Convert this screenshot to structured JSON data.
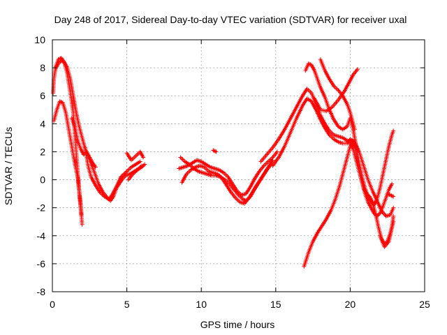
{
  "chart_data": {
    "type": "scatter",
    "title": "Day 248 of 2017, Sidereal Day-to-day VTEC variation (SDTVAR) for receiver uxal",
    "xlabel": "GPS time / hours",
    "ylabel": "SDTVAR / TECUs",
    "xlim": [
      0,
      25
    ],
    "ylim": [
      -8,
      10
    ],
    "xticks": [
      0,
      5,
      10,
      15,
      20,
      25
    ],
    "yticks": [
      -8,
      -6,
      -4,
      -2,
      0,
      2,
      4,
      6,
      8,
      10
    ],
    "grid": true,
    "marker": "+",
    "color": "#ff0000",
    "tracks": [
      [
        [
          0.05,
          6.2
        ],
        [
          0.1,
          7.2
        ],
        [
          0.2,
          7.9
        ],
        [
          0.4,
          8.3
        ],
        [
          0.6,
          8.5
        ],
        [
          0.8,
          8.4
        ],
        [
          1.0,
          8.0
        ],
        [
          1.2,
          7.2
        ],
        [
          1.4,
          6.0
        ],
        [
          1.6,
          4.8
        ],
        [
          1.8,
          3.8
        ],
        [
          2.0,
          3.0
        ],
        [
          2.2,
          2.2
        ],
        [
          2.5,
          1.4
        ],
        [
          2.8,
          0.6
        ],
        [
          3.1,
          -0.3
        ],
        [
          3.4,
          -0.9
        ],
        [
          3.7,
          -1.3
        ],
        [
          3.9,
          -1.5
        ],
        [
          4.1,
          -1.2
        ],
        [
          4.3,
          -0.6
        ],
        [
          4.6,
          -0.1
        ],
        [
          4.9,
          0.3
        ],
        [
          5.2,
          0.4
        ],
        [
          5.5,
          0.6
        ],
        [
          5.8,
          0.8
        ],
        [
          6.0,
          1.0
        ]
      ],
      [
        [
          0.1,
          4.2
        ],
        [
          0.3,
          5.0
        ],
        [
          0.5,
          5.6
        ],
        [
          0.7,
          5.5
        ],
        [
          0.9,
          4.8
        ],
        [
          1.1,
          3.6
        ],
        [
          1.3,
          2.4
        ],
        [
          1.5,
          1.2
        ],
        [
          1.7,
          0.2
        ],
        [
          1.8,
          -0.8
        ],
        [
          1.9,
          -1.8
        ],
        [
          1.95,
          -2.5
        ]
      ],
      [
        [
          0.2,
          8.0
        ],
        [
          0.4,
          8.6
        ],
        [
          0.6,
          8.7
        ],
        [
          0.8,
          8.4
        ],
        [
          1.0,
          7.6
        ],
        [
          1.2,
          6.3
        ],
        [
          1.4,
          4.8
        ],
        [
          1.5,
          3.4
        ],
        [
          1.6,
          2.0
        ],
        [
          1.7,
          0.6
        ],
        [
          1.8,
          -0.8
        ],
        [
          1.9,
          -2.0
        ],
        [
          2.0,
          -3.2
        ]
      ],
      [
        [
          1.3,
          4.4
        ],
        [
          1.5,
          3.8
        ],
        [
          1.7,
          2.8
        ],
        [
          1.9,
          2.2
        ],
        [
          2.1,
          1.8
        ],
        [
          2.3,
          2.0
        ],
        [
          2.5,
          1.6
        ],
        [
          2.7,
          1.2
        ],
        [
          2.9,
          0.9
        ]
      ],
      [
        [
          2.2,
          2.3
        ],
        [
          2.4,
          1.0
        ],
        [
          2.6,
          0.2
        ],
        [
          2.9,
          -0.4
        ],
        [
          3.2,
          -0.9
        ],
        [
          3.5,
          -1.2
        ],
        [
          3.8,
          -1.4
        ],
        [
          4.0,
          -1.1
        ],
        [
          4.3,
          -0.5
        ],
        [
          4.6,
          0.2
        ],
        [
          5.0,
          0.6
        ],
        [
          5.3,
          0.9
        ],
        [
          5.6,
          1.1
        ],
        [
          5.9,
          1.3
        ]
      ],
      [
        [
          5.0,
          1.9
        ],
        [
          5.3,
          1.4
        ],
        [
          5.6,
          1.7
        ],
        [
          5.9,
          2.0
        ],
        [
          6.1,
          1.6
        ]
      ],
      [
        [
          5.1,
          0.0
        ],
        [
          5.4,
          0.4
        ],
        [
          5.7,
          0.7
        ],
        [
          6.0,
          0.9
        ],
        [
          6.2,
          1.1
        ]
      ],
      [
        [
          8.5,
          0.8
        ],
        [
          8.8,
          0.9
        ],
        [
          9.1,
          1.0
        ],
        [
          9.4,
          1.2
        ],
        [
          9.7,
          1.4
        ],
        [
          10.0,
          1.3
        ],
        [
          10.3,
          1.1
        ],
        [
          10.6,
          0.9
        ],
        [
          10.9,
          0.8
        ],
        [
          11.2,
          0.7
        ],
        [
          11.5,
          0.5
        ],
        [
          11.8,
          0.2
        ],
        [
          12.1,
          -0.3
        ],
        [
          12.4,
          -0.8
        ],
        [
          12.7,
          -1.1
        ],
        [
          13.0,
          -1.0
        ],
        [
          13.3,
          -0.5
        ],
        [
          13.6,
          0.1
        ],
        [
          13.9,
          0.6
        ],
        [
          14.2,
          1.0
        ],
        [
          14.5,
          1.3
        ],
        [
          14.8,
          1.6
        ],
        [
          15.1,
          2.0
        ]
      ],
      [
        [
          8.6,
          1.6
        ],
        [
          8.9,
          1.3
        ],
        [
          9.2,
          1.1
        ],
        [
          9.5,
          0.8
        ],
        [
          9.8,
          0.6
        ],
        [
          10.1,
          0.5
        ],
        [
          10.4,
          0.4
        ],
        [
          10.7,
          0.3
        ],
        [
          11.0,
          0.3
        ],
        [
          11.3,
          0.2
        ],
        [
          11.6,
          0.0
        ],
        [
          11.9,
          -0.3
        ],
        [
          12.2,
          -0.7
        ],
        [
          12.5,
          -1.1
        ],
        [
          12.8,
          -1.4
        ],
        [
          13.0,
          -1.5
        ],
        [
          13.3,
          -1.2
        ],
        [
          13.6,
          -0.6
        ],
        [
          13.9,
          -0.1
        ],
        [
          14.2,
          0.4
        ],
        [
          14.5,
          0.9
        ],
        [
          14.8,
          1.4
        ]
      ],
      [
        [
          8.7,
          -0.2
        ],
        [
          9.0,
          0.4
        ],
        [
          9.3,
          0.7
        ],
        [
          9.6,
          0.9
        ],
        [
          9.9,
          1.0
        ],
        [
          10.2,
          0.9
        ],
        [
          10.5,
          0.6
        ],
        [
          10.8,
          0.5
        ],
        [
          11.1,
          0.4
        ],
        [
          11.4,
          0.1
        ],
        [
          11.7,
          -0.4
        ],
        [
          12.0,
          -0.9
        ],
        [
          12.3,
          -1.3
        ],
        [
          12.6,
          -1.6
        ],
        [
          12.9,
          -1.7
        ],
        [
          13.2,
          -1.3
        ],
        [
          13.5,
          -0.8
        ],
        [
          13.8,
          -0.3
        ],
        [
          14.1,
          0.2
        ],
        [
          14.4,
          0.7
        ],
        [
          14.7,
          1.1
        ]
      ],
      [
        [
          10.8,
          2.1
        ],
        [
          11.0,
          2.0
        ]
      ],
      [
        [
          14.0,
          1.3
        ],
        [
          14.4,
          1.8
        ],
        [
          14.8,
          2.3
        ],
        [
          15.2,
          2.9
        ],
        [
          15.6,
          3.6
        ],
        [
          16.0,
          4.4
        ],
        [
          16.4,
          5.2
        ],
        [
          16.8,
          6.0
        ],
        [
          17.1,
          6.5
        ],
        [
          17.4,
          6.2
        ],
        [
          17.7,
          5.4
        ],
        [
          18.0,
          4.6
        ],
        [
          18.3,
          4.0
        ],
        [
          18.6,
          3.5
        ],
        [
          18.9,
          3.2
        ],
        [
          19.2,
          3.1
        ],
        [
          19.5,
          3.0
        ],
        [
          19.8,
          2.8
        ],
        [
          20.0,
          2.6
        ],
        [
          20.2,
          2.2
        ],
        [
          20.4,
          1.4
        ],
        [
          20.6,
          0.6
        ],
        [
          20.8,
          -0.2
        ],
        [
          21.0,
          -1.0
        ],
        [
          21.2,
          -1.6
        ],
        [
          21.4,
          -2.0
        ],
        [
          21.6,
          -2.4
        ],
        [
          21.8,
          -2.6
        ],
        [
          22.0,
          -2.4
        ],
        [
          22.2,
          -1.9
        ],
        [
          22.4,
          -1.3
        ],
        [
          22.6,
          -0.7
        ],
        [
          22.8,
          -0.3
        ]
      ],
      [
        [
          14.8,
          1.0
        ],
        [
          15.2,
          1.6
        ],
        [
          15.6,
          2.4
        ],
        [
          16.0,
          3.4
        ],
        [
          16.4,
          4.4
        ],
        [
          16.8,
          5.3
        ],
        [
          17.1,
          5.8
        ],
        [
          17.4,
          5.6
        ],
        [
          17.7,
          5.0
        ],
        [
          18.0,
          4.3
        ],
        [
          18.3,
          3.7
        ],
        [
          18.6,
          3.2
        ],
        [
          18.9,
          2.9
        ],
        [
          19.2,
          2.7
        ],
        [
          19.5,
          2.6
        ],
        [
          19.8,
          2.6
        ],
        [
          20.0,
          2.9
        ],
        [
          20.3,
          2.7
        ],
        [
          20.6,
          2.0
        ],
        [
          20.9,
          1.0
        ],
        [
          21.2,
          0.0
        ],
        [
          21.5,
          -0.8
        ],
        [
          21.8,
          -1.5
        ],
        [
          22.1,
          -2.2
        ],
        [
          22.4,
          -2.6
        ],
        [
          22.7,
          -2.5
        ],
        [
          22.9,
          -2.0
        ]
      ],
      [
        [
          16.9,
          -6.2
        ],
        [
          17.2,
          -5.2
        ],
        [
          17.5,
          -4.4
        ],
        [
          17.8,
          -3.8
        ],
        [
          18.1,
          -3.3
        ],
        [
          18.4,
          -2.8
        ],
        [
          18.7,
          -2.2
        ],
        [
          19.0,
          -1.4
        ],
        [
          19.3,
          -0.4
        ],
        [
          19.6,
          0.8
        ],
        [
          19.9,
          2.0
        ],
        [
          20.1,
          2.8
        ],
        [
          20.3,
          2.4
        ],
        [
          20.5,
          1.3
        ],
        [
          20.7,
          0.2
        ],
        [
          20.9,
          -0.6
        ],
        [
          21.1,
          -1.0
        ],
        [
          21.3,
          -1.2
        ],
        [
          21.5,
          -1.6
        ],
        [
          21.7,
          -2.4
        ],
        [
          21.9,
          -3.4
        ],
        [
          22.1,
          -4.2
        ],
        [
          22.3,
          -4.6
        ],
        [
          22.5,
          -4.4
        ],
        [
          22.7,
          -3.8
        ],
        [
          22.9,
          -3.0
        ]
      ],
      [
        [
          17.0,
          7.8
        ],
        [
          17.2,
          8.3
        ],
        [
          17.4,
          8.2
        ],
        [
          17.6,
          7.8
        ],
        [
          17.8,
          7.2
        ],
        [
          18.0,
          6.6
        ],
        [
          18.3,
          5.9
        ],
        [
          18.6,
          5.0
        ],
        [
          18.9,
          4.3
        ],
        [
          19.2,
          3.8
        ],
        [
          19.5,
          3.6
        ],
        [
          19.8,
          3.8
        ],
        [
          20.0,
          4.4
        ],
        [
          20.2,
          3.6
        ],
        [
          20.4,
          2.4
        ],
        [
          20.6,
          1.2
        ],
        [
          20.8,
          0.2
        ],
        [
          21.0,
          -0.6
        ],
        [
          21.2,
          -1.2
        ],
        [
          21.4,
          -1.6
        ],
        [
          21.6,
          -1.8
        ],
        [
          21.8,
          -1.4
        ],
        [
          22.0,
          -0.6
        ],
        [
          22.2,
          0.4
        ],
        [
          22.4,
          1.4
        ],
        [
          22.6,
          2.4
        ],
        [
          22.8,
          3.2
        ],
        [
          22.9,
          3.5
        ]
      ],
      [
        [
          18.0,
          8.6
        ],
        [
          18.3,
          7.8
        ],
        [
          18.6,
          7.2
        ],
        [
          18.9,
          6.7
        ],
        [
          19.2,
          6.4
        ],
        [
          19.5,
          6.0
        ],
        [
          19.8,
          5.4
        ],
        [
          20.0,
          4.8
        ],
        [
          20.3,
          3.6
        ]
      ],
      [
        [
          17.6,
          5.8
        ],
        [
          18.0,
          5.0
        ],
        [
          18.4,
          4.9
        ],
        [
          18.8,
          5.2
        ],
        [
          19.2,
          5.7
        ],
        [
          19.6,
          6.3
        ],
        [
          19.9,
          6.9
        ],
        [
          20.2,
          7.5
        ],
        [
          20.5,
          7.9
        ]
      ],
      [
        [
          22.0,
          -4.0
        ],
        [
          22.3,
          -4.8
        ],
        [
          22.6,
          -4.4
        ],
        [
          22.8,
          -3.4
        ],
        [
          22.9,
          -2.6
        ]
      ],
      [
        [
          22.5,
          -1.0
        ],
        [
          22.7,
          -1.1
        ],
        [
          22.9,
          -1.2
        ]
      ]
    ]
  }
}
